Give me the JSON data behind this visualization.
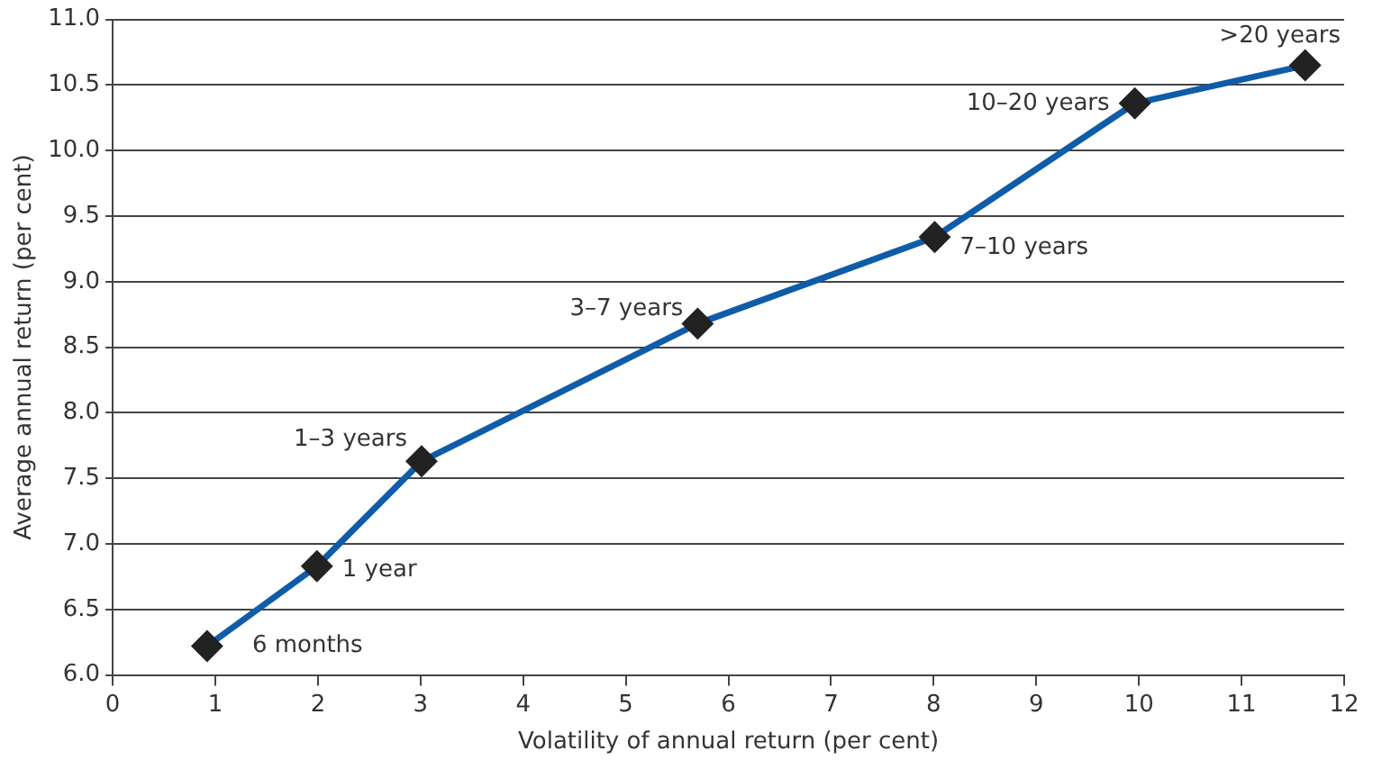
{
  "chart_data": {
    "type": "line",
    "xlabel": "Volatility of annual return (per cent)",
    "ylabel": "Average annual return (per cent)",
    "x": [
      0.92,
      1.99,
      3.01,
      5.7,
      8.01,
      9.96,
      11.62
    ],
    "series": [
      {
        "color": "#0f5ca8",
        "values": [
          6.22,
          6.83,
          7.63,
          8.68,
          9.34,
          10.36,
          10.65
        ]
      }
    ],
    "xlim": [
      0,
      12
    ],
    "xticks": [
      0,
      1,
      2,
      3,
      4,
      5,
      6,
      7,
      8,
      9,
      10,
      11,
      12
    ],
    "ylim": [
      6,
      11
    ],
    "yticks": [
      {
        "value": 6,
        "label": "6.0"
      },
      {
        "value": 6.5,
        "label": "6.5"
      },
      {
        "value": 7,
        "label": "7.0"
      },
      {
        "value": 7.5,
        "label": "7.5"
      },
      {
        "value": 8,
        "label": "8.0"
      },
      {
        "value": 8.5,
        "label": "8.5"
      },
      {
        "value": 9,
        "label": "9.0"
      },
      {
        "value": 9.5,
        "label": "9.5"
      },
      {
        "value": 10,
        "label": "10.0"
      },
      {
        "value": 10.5,
        "label": "10.5"
      },
      {
        "value": 11,
        "label": "11.0"
      }
    ],
    "grid": "y",
    "legend": false,
    "marker": "diamond",
    "line_style": "solid",
    "annotations": [
      {
        "text": "6 months",
        "x": 0.92,
        "y": 6.22
      },
      {
        "text": "1 year",
        "x": 1.99,
        "y": 6.83
      },
      {
        "text": "1–3 years",
        "x": 3.01,
        "y": 7.63
      },
      {
        "text": "3–7 years",
        "x": 5.7,
        "y": 8.68
      },
      {
        "text": "7–10 years",
        "x": 8.01,
        "y": 9.34
      },
      {
        "text": "10–20 years",
        "x": 9.96,
        "y": 10.36
      },
      {
        "text": ">20 years",
        "x": 11.62,
        "y": 10.65
      }
    ]
  }
}
